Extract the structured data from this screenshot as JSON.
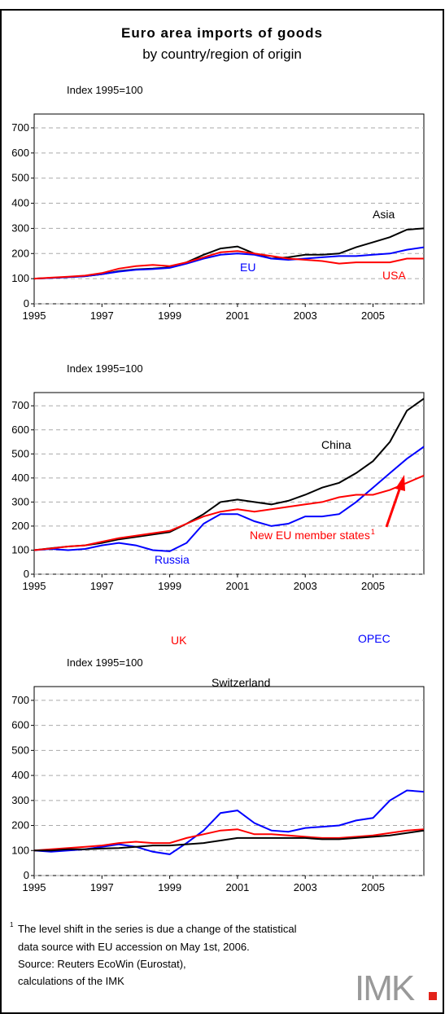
{
  "title": "Euro area imports of goods",
  "subtitle": "by country/region of origin",
  "chart_data": [
    {
      "type": "line",
      "ylabel": "Index 1995=100",
      "x": [
        1995,
        1995.5,
        1996,
        1996.5,
        1997,
        1997.5,
        1998,
        1998.5,
        1999,
        1999.5,
        2000,
        2000.5,
        2001,
        2001.5,
        2002,
        2002.5,
        2003,
        2003.5,
        2004,
        2004.5,
        2005,
        2005.5,
        2006,
        2006.5
      ],
      "xlim": [
        1995,
        2006.5
      ],
      "xticks": [
        1995,
        1997,
        1999,
        2001,
        2003,
        2005
      ],
      "ylim": [
        0,
        755
      ],
      "yticks": [
        0,
        100,
        200,
        300,
        400,
        500,
        600,
        700
      ],
      "grid": true,
      "series": [
        {
          "name": "Asia",
          "color": "#000000",
          "values": [
            100,
            103,
            106,
            110,
            118,
            130,
            137,
            140,
            145,
            165,
            195,
            220,
            228,
            200,
            180,
            185,
            195,
            195,
            200,
            225,
            245,
            265,
            295,
            300
          ]
        },
        {
          "name": "EU",
          "color": "#0000ff",
          "values": [
            100,
            103,
            106,
            110,
            118,
            128,
            135,
            138,
            143,
            160,
            180,
            195,
            200,
            195,
            180,
            175,
            180,
            185,
            190,
            190,
            195,
            200,
            215,
            225
          ]
        },
        {
          "name": "USA",
          "color": "#ff0000",
          "values": [
            100,
            104,
            108,
            112,
            122,
            140,
            150,
            155,
            150,
            165,
            185,
            205,
            210,
            200,
            190,
            180,
            175,
            170,
            160,
            165,
            165,
            165,
            180,
            180
          ]
        }
      ]
    },
    {
      "type": "line",
      "ylabel": "Index 1995=100",
      "x": [
        1995,
        1995.5,
        1996,
        1996.5,
        1997,
        1997.5,
        1998,
        1998.5,
        1999,
        1999.5,
        2000,
        2000.5,
        2001,
        2001.5,
        2002,
        2002.5,
        2003,
        2003.5,
        2004,
        2004.5,
        2005,
        2005.5,
        2006,
        2006.5
      ],
      "xlim": [
        1995,
        2006.5
      ],
      "xticks": [
        1995,
        1997,
        1999,
        2001,
        2003,
        2005
      ],
      "ylim": [
        0,
        755
      ],
      "yticks": [
        0,
        100,
        200,
        300,
        400,
        500,
        600,
        700
      ],
      "grid": true,
      "series": [
        {
          "name": "China",
          "color": "#000000",
          "values": [
            100,
            108,
            115,
            120,
            130,
            145,
            155,
            165,
            175,
            210,
            250,
            300,
            310,
            300,
            290,
            305,
            330,
            360,
            380,
            420,
            470,
            550,
            680,
            730
          ]
        },
        {
          "name": "Russia",
          "color": "#0000ff",
          "values": [
            100,
            105,
            100,
            105,
            120,
            130,
            120,
            100,
            95,
            130,
            210,
            250,
            250,
            220,
            200,
            210,
            240,
            240,
            250,
            300,
            360,
            420,
            480,
            530
          ]
        },
        {
          "name": "New EU member states",
          "footnote_mark": "1",
          "color": "#ff0000",
          "values": [
            100,
            107,
            115,
            120,
            135,
            150,
            160,
            170,
            180,
            210,
            240,
            260,
            270,
            260,
            270,
            280,
            290,
            300,
            320,
            330,
            330,
            350,
            380,
            410
          ]
        }
      ]
    },
    {
      "type": "line",
      "ylabel": "Index 1995=100",
      "x": [
        1995,
        1995.5,
        1996,
        1996.5,
        1997,
        1997.5,
        1998,
        1998.5,
        1999,
        1999.5,
        2000,
        2000.5,
        2001,
        2001.5,
        2002,
        2002.5,
        2003,
        2003.5,
        2004,
        2004.5,
        2005,
        2005.5,
        2006,
        2006.5
      ],
      "xlim": [
        1995,
        2006.5
      ],
      "xticks": [
        1995,
        1997,
        1999,
        2001,
        2003,
        2005
      ],
      "ylim": [
        0,
        755
      ],
      "yticks": [
        0,
        100,
        200,
        300,
        400,
        500,
        600,
        700
      ],
      "grid": true,
      "series": [
        {
          "name": "OPEC",
          "color": "#0000ff",
          "values": [
            100,
            95,
            100,
            105,
            115,
            125,
            115,
            95,
            85,
            130,
            180,
            250,
            260,
            210,
            180,
            175,
            190,
            195,
            200,
            220,
            230,
            300,
            340,
            335
          ]
        },
        {
          "name": "UK",
          "color": "#ff0000",
          "values": [
            100,
            105,
            110,
            115,
            120,
            130,
            135,
            130,
            130,
            150,
            165,
            180,
            185,
            165,
            165,
            160,
            155,
            150,
            150,
            155,
            160,
            170,
            180,
            185
          ]
        },
        {
          "name": "Switzerland",
          "color": "#000000",
          "values": [
            100,
            100,
            105,
            105,
            108,
            110,
            115,
            120,
            120,
            125,
            130,
            140,
            150,
            150,
            150,
            150,
            150,
            145,
            145,
            150,
            155,
            160,
            170,
            180
          ]
        }
      ]
    }
  ],
  "footnote": {
    "mark": "1",
    "lines": [
      "The level shift in the series is due a change of the statistical",
      "data source with EU accession on May 1st, 2006.",
      "Source: Reuters EcoWin (Eurostat),",
      "calculations of the IMK"
    ]
  },
  "logo": "IMK"
}
